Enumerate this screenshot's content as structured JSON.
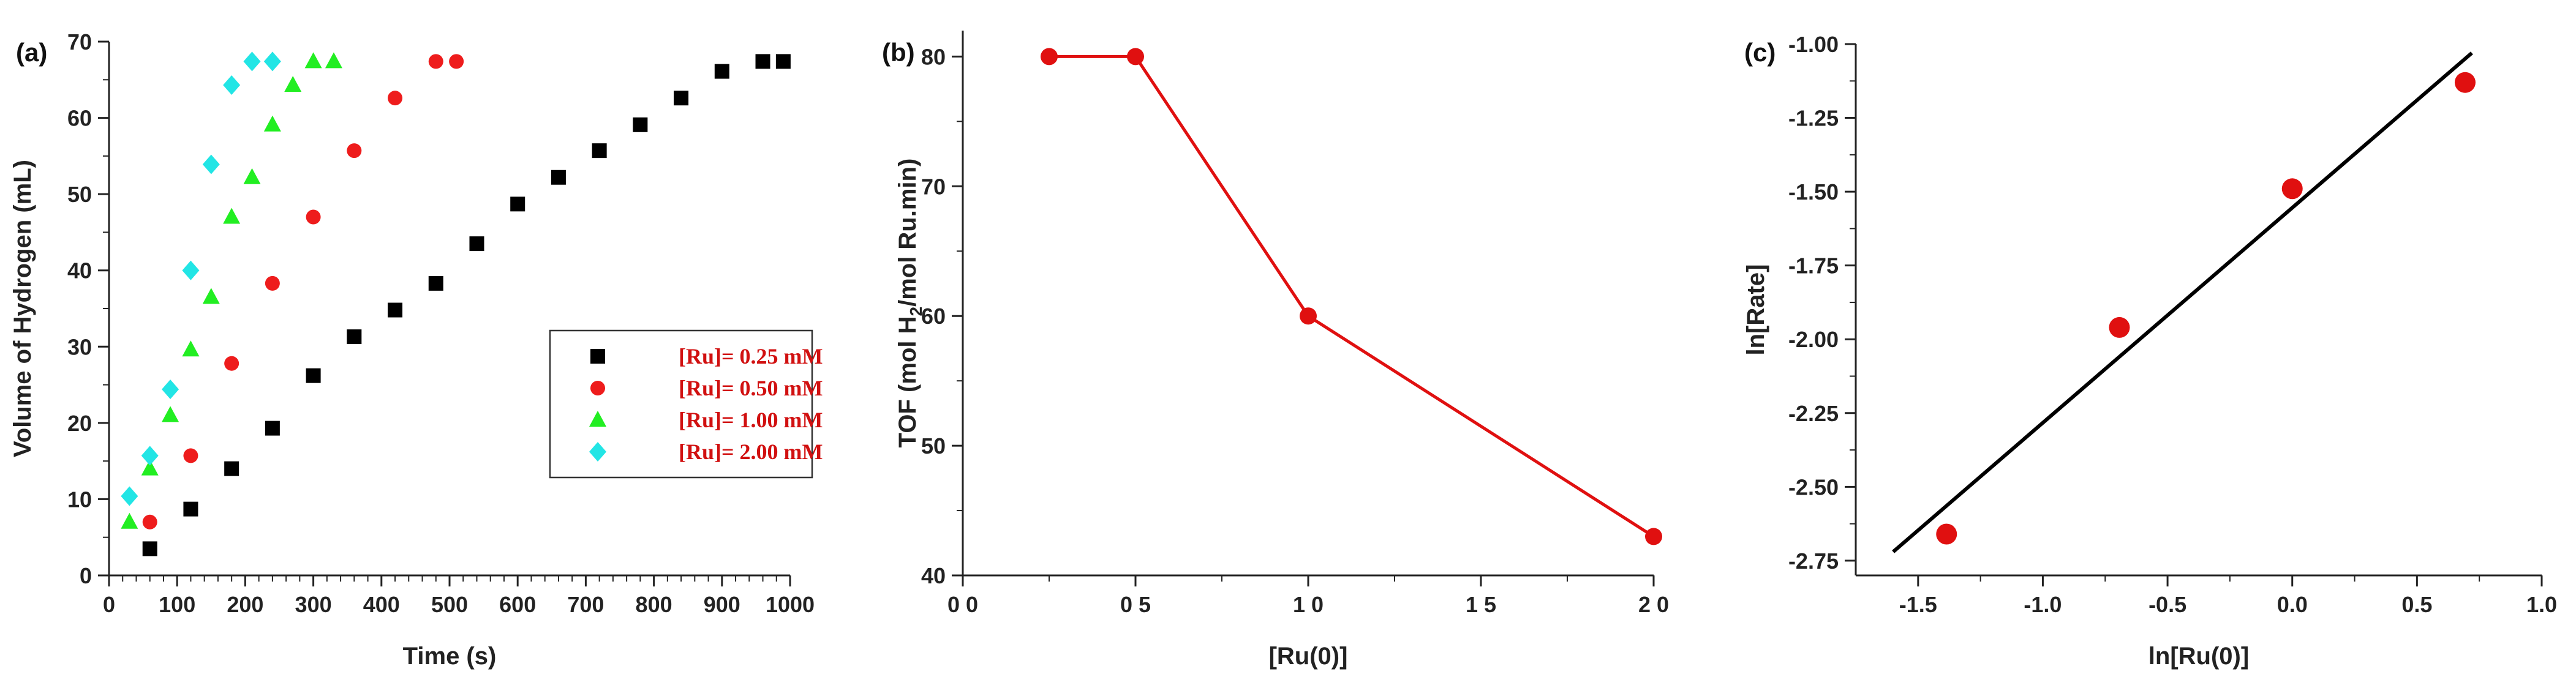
{
  "chart_data": [
    {
      "panel_label": "(a)",
      "type": "scatter",
      "xlabel": "Time (s)",
      "ylabel": "Volume of Hydrogen (mL)",
      "xlim": [
        0,
        1000
      ],
      "ylim": [
        0,
        70
      ],
      "xticks": [
        0,
        100,
        200,
        300,
        400,
        500,
        600,
        700,
        800,
        900,
        1000
      ],
      "yticks": [
        0,
        10,
        20,
        30,
        40,
        50,
        60,
        70
      ],
      "legend_position": "bottom-right",
      "series": [
        {
          "name": "[Ru]= 0.25 mM",
          "color": "#000000",
          "marker": "square",
          "x": [
            60,
            120,
            180,
            240,
            300,
            360,
            420,
            480,
            540,
            600,
            660,
            720,
            780,
            840,
            900,
            960,
            990
          ],
          "y": [
            3.5,
            8.7,
            14,
            19.3,
            26.2,
            31.3,
            34.8,
            38.3,
            43.5,
            48.7,
            52.2,
            55.7,
            59.1,
            62.6,
            66.1,
            67.4,
            67.4
          ]
        },
        {
          "name": "[Ru]= 0.50 mM",
          "color": "#ee1c1c",
          "marker": "circle",
          "x": [
            60,
            120,
            180,
            240,
            300,
            360,
            420,
            480,
            510
          ],
          "y": [
            7,
            15.7,
            27.8,
            38.3,
            47,
            55.7,
            62.6,
            67.4,
            67.4
          ]
        },
        {
          "name": "[Ru]= 1.00 mM",
          "color": "#22ee22",
          "marker": "triangle",
          "x": [
            30,
            60,
            90,
            120,
            150,
            180,
            210,
            240,
            270,
            300,
            330
          ],
          "y": [
            7,
            14,
            21,
            29.6,
            36.5,
            47,
            52.2,
            59.1,
            64.3,
            67.4,
            67.4
          ]
        },
        {
          "name": "[Ru]= 2.00 mM",
          "color": "#22e5e5",
          "marker": "diamond",
          "x": [
            30,
            60,
            90,
            120,
            150,
            180,
            210,
            240
          ],
          "y": [
            10.4,
            15.7,
            24.4,
            40,
            53.9,
            64.3,
            67.4,
            67.4
          ]
        }
      ]
    },
    {
      "panel_label": "(b)",
      "type": "line",
      "xlabel": "[Ru(0)]",
      "ylabel": "TOF (mol H",
      "ylabel_subscript": "2",
      "ylabel_rest": "/mol Ru.min)",
      "xlim": [
        0,
        2.0
      ],
      "ylim": [
        40,
        82
      ],
      "xticks": [
        0.0,
        0.5,
        1.0,
        1.5,
        2.0
      ],
      "xtick_labels": [
        "0 0",
        "0 5",
        "1 0",
        "1 5",
        "2 0"
      ],
      "yticks": [
        40,
        50,
        60,
        70,
        80
      ],
      "series": [
        {
          "color": "#e01010",
          "x": [
            0.25,
            0.5,
            1.0,
            2.0
          ],
          "y": [
            80,
            80,
            60,
            43
          ]
        }
      ]
    },
    {
      "panel_label": "(c)",
      "type": "scatter",
      "xlabel": "ln[Ru(0)]",
      "ylabel": "ln[Rate]",
      "xlim": [
        -1.75,
        1.0
      ],
      "ylim": [
        -2.8,
        -1.0
      ],
      "xticks": [
        -1.5,
        -1.0,
        -0.5,
        0.0,
        0.5,
        1.0
      ],
      "xtick_labels": [
        "-1.5",
        "-1.0",
        "-0.5",
        "0.0",
        "0.5",
        "1.0"
      ],
      "yticks": [
        -2.75,
        -2.5,
        -2.25,
        -2.0,
        -1.75,
        -1.5,
        -1.25,
        -1.0
      ],
      "ytick_labels": [
        "-2.75",
        "-2.50",
        "-2.25",
        "-2.00",
        "-1.75",
        "-1.50",
        "-1.25",
        "-1.00"
      ],
      "points": {
        "color": "#e01010",
        "x": [
          -1.386,
          -0.693,
          0.0,
          0.693
        ],
        "y": [
          -2.66,
          -1.96,
          -1.49,
          -1.13
        ]
      },
      "fit_line": {
        "color": "#000000",
        "x": [
          -1.6,
          0.72
        ],
        "y": [
          -2.72,
          -1.03
        ]
      }
    }
  ]
}
